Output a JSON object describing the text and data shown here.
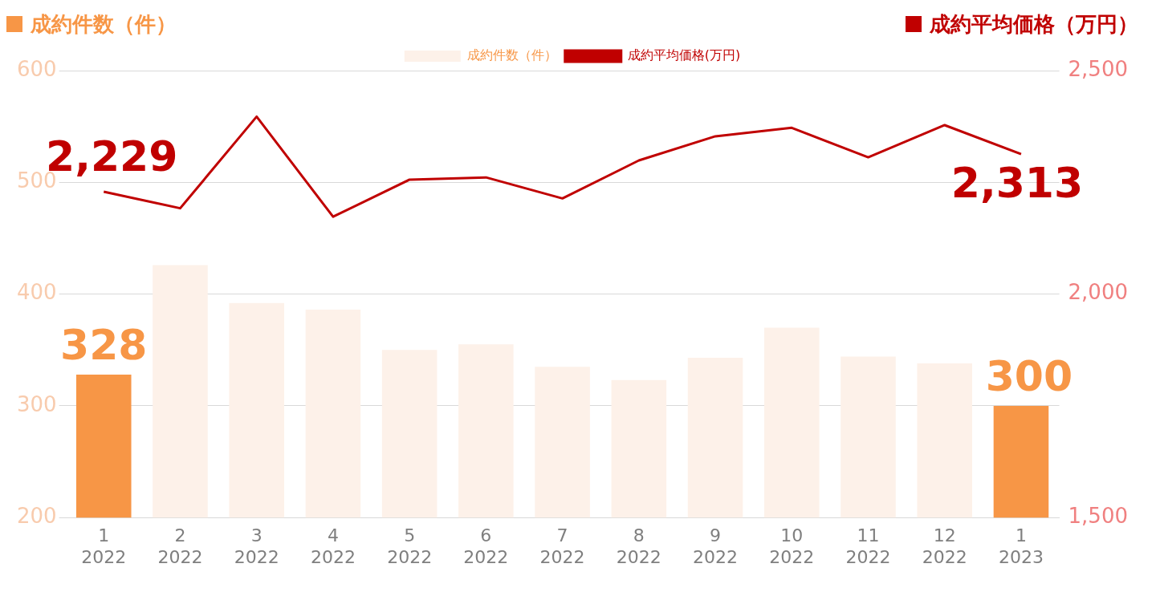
{
  "chart_data": {
    "type": "bar",
    "ylabel": "成約件数（件）",
    "y2label": "成約平均価格（万円）",
    "categories": [
      "1\n2022",
      "2\n2022",
      "3\n2022",
      "4\n2022",
      "5\n2022",
      "6\n2022",
      "7\n2022",
      "8\n2022",
      "9\n2022",
      "10\n2022",
      "11\n2022",
      "12\n2022",
      "1\n2023"
    ],
    "series": [
      {
        "name": "成約件数（件）",
        "color": "#fdf1e9",
        "colors": [
          "#f79646",
          "#fdf1e9",
          "#fdf1e9",
          "#fdf1e9",
          "#fdf1e9",
          "#fdf1e9",
          "#fdf1e9",
          "#fdf1e9",
          "#fdf1e9",
          "#fdf1e9",
          "#fdf1e9",
          "#fdf1e9",
          "#f79646"
        ],
        "values": [
          328,
          426,
          392,
          386,
          350,
          355,
          335,
          323,
          343,
          370,
          344,
          338,
          300
        ],
        "value_labels": [
          "328",
          null,
          null,
          null,
          null,
          null,
          null,
          null,
          null,
          null,
          null,
          null,
          "300"
        ]
      },
      {
        "name": "成約平均価格(万円)",
        "type": "line",
        "axis": "y2",
        "color": "#c00000",
        "values": [
          2229,
          2192,
          2397,
          2173,
          2256,
          2261,
          2214,
          2299,
          2353,
          2372,
          2306,
          2378,
          2313
        ],
        "value_labels": [
          "2,229",
          null,
          null,
          null,
          null,
          null,
          null,
          null,
          null,
          null,
          null,
          null,
          "2,313"
        ]
      }
    ],
    "ylim": [
      200,
      600
    ],
    "yticks": [
      200,
      300,
      400,
      500,
      600
    ],
    "y2lim": [
      1500,
      2500
    ],
    "y2ticks": [
      {
        "value": 1500,
        "label": "1,500"
      },
      {
        "value": 2000,
        "label": "2,000"
      },
      {
        "value": 2500,
        "label": "2,500"
      }
    ],
    "grid": "y",
    "legend": "top",
    "marker": "none"
  }
}
